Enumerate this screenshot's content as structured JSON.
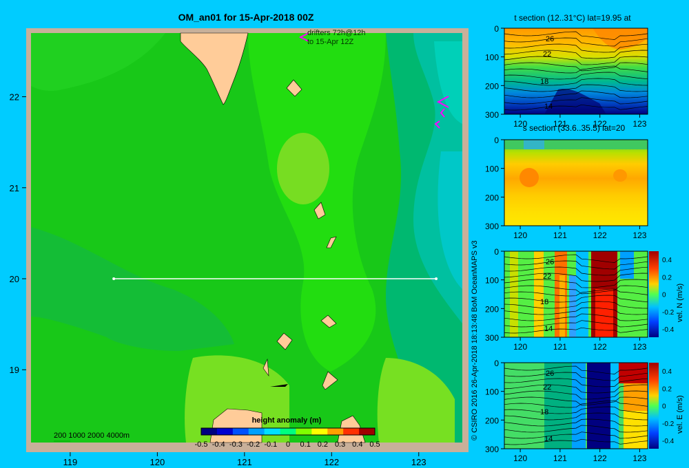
{
  "map": {
    "title": "OM_an01 for 15-Apr-2018 00Z",
    "drifters_line1": "drifters 72h@12h",
    "drifters_line2": "to 15-Apr 12Z",
    "xticks": [
      119,
      120,
      121,
      122,
      123
    ],
    "yticks": [
      22,
      21,
      20,
      19
    ],
    "xlim": [
      118.55,
      123.5
    ],
    "ylim": [
      18.2,
      22.7
    ],
    "section_line": {
      "lat": 20,
      "lon_start": 119.5,
      "lon_end": 123.2
    },
    "depth_legend": "200  1000  2000  4000m",
    "colorbar": {
      "label": "height anomaly (m)",
      "ticks": [
        "-0.5",
        "-0.4",
        "-0.3",
        "-0.2",
        "-0.1",
        "0",
        "0.1",
        "0.2",
        "0.3",
        "0.4",
        "0.5"
      ],
      "colors": [
        "#000080",
        "#0000d0",
        "#0050ff",
        "#00a0ff",
        "#00e0ff",
        "#00ff80",
        "#80ff00",
        "#ffff00",
        "#ffa000",
        "#ff3000",
        "#a00000"
      ]
    },
    "colors": {
      "land": "#ffcc99",
      "shelf": "#c8b09a",
      "frame": "#c8b09a"
    }
  },
  "credit": "© CSIRO 2016    26-Apr-2018 18:13:48 BoM OceanMAPS v3",
  "sections": [
    {
      "title": "t section (12..31°C) lat=19.95 at",
      "xticks": [
        "120",
        "121",
        "122",
        "123"
      ],
      "yticks": [
        "0",
        "100",
        "200",
        "300"
      ],
      "contour_labels": [
        "26",
        "22",
        "18",
        "14"
      ],
      "colorbar": null
    },
    {
      "title": "s section (33.6..35.5) lat=20",
      "xticks": [
        "120",
        "121",
        "122",
        "123"
      ],
      "yticks": [
        "0",
        "100",
        "200",
        "300"
      ],
      "contour_labels": [],
      "colorbar": null
    },
    {
      "title": "",
      "xticks": [
        "120",
        "121",
        "122",
        "123"
      ],
      "yticks": [
        "0",
        "100",
        "200",
        "300"
      ],
      "contour_labels": [
        "26",
        "22",
        "18",
        "14"
      ],
      "colorbar": {
        "label": "vel. N (m/s)",
        "ticks": [
          "0.4",
          "0.2",
          "0",
          "-0.2",
          "-0.4"
        ]
      }
    },
    {
      "title": "",
      "xticks": [
        "120",
        "121",
        "122",
        "123"
      ],
      "yticks": [
        "0",
        "100",
        "200",
        "300"
      ],
      "contour_labels": [
        "26",
        "22",
        "18",
        "14"
      ],
      "colorbar": {
        "label": "vel. E (m/s)",
        "ticks": [
          "0.4",
          "0.2",
          "0",
          "-0.2",
          "-0.4"
        ]
      }
    }
  ],
  "chart_data": [
    {
      "type": "heatmap",
      "title": "OM_an01 for 15-Apr-2018 00Z",
      "quantity": "height anomaly (m)",
      "xlim": [
        118.55,
        123.5
      ],
      "ylim": [
        18.2,
        22.7
      ],
      "xticks": [
        119,
        120,
        121,
        122,
        123
      ],
      "yticks": [
        19,
        20,
        21,
        22
      ],
      "value_range": [
        -0.5,
        0.5
      ]
    },
    {
      "type": "heatmap",
      "title": "t section (12..31°C) lat=19.95 at",
      "value_range": [
        12,
        31
      ],
      "xlim": [
        119.6,
        123.2
      ],
      "ylim": [
        300,
        0
      ]
    },
    {
      "type": "heatmap",
      "title": "s section (33.6..35.5) lat=20",
      "value_range": [
        33.6,
        35.5
      ],
      "xlim": [
        119.6,
        123.2
      ],
      "ylim": [
        300,
        0
      ]
    },
    {
      "type": "heatmap",
      "quantity": "vel. N (m/s)",
      "value_range": [
        -0.4,
        0.4
      ],
      "xlim": [
        119.6,
        123.2
      ],
      "ylim": [
        300,
        0
      ]
    },
    {
      "type": "heatmap",
      "quantity": "vel. E (m/s)",
      "value_range": [
        -0.4,
        0.4
      ],
      "xlim": [
        119.6,
        123.2
      ],
      "ylim": [
        300,
        0
      ]
    }
  ]
}
